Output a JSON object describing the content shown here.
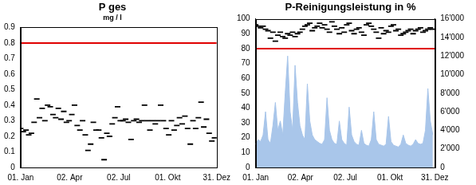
{
  "chart_data": [
    {
      "type": "scatter",
      "title": "P ges",
      "subtitle": "mg / l",
      "xlim": [
        1,
        365
      ],
      "xticks": [
        {
          "value": 1,
          "label": "01. Jan"
        },
        {
          "value": 92,
          "label": "02. Apr"
        },
        {
          "value": 183,
          "label": "02. Jul"
        },
        {
          "value": 274,
          "label": "01. Okt"
        },
        {
          "value": 365,
          "label": "31. Dez"
        }
      ],
      "ylim": [
        0,
        0.9
      ],
      "yticks": [
        0,
        0.1,
        0.2,
        0.3,
        0.4,
        0.5,
        0.6,
        0.7,
        0.8,
        0.9
      ],
      "grid": false,
      "hlines": [
        {
          "value": 0.8,
          "color": "#e00000"
        }
      ],
      "series": [
        {
          "color": "#000000",
          "marker": "dash",
          "x": [
            1,
            6,
            11,
            16,
            21,
            26,
            31,
            36,
            41,
            46,
            51,
            56,
            61,
            66,
            71,
            76,
            81,
            86,
            91,
            96,
            101,
            106,
            111,
            116,
            121,
            126,
            131,
            136,
            141,
            146,
            151,
            156,
            161,
            166,
            171,
            176,
            181,
            186,
            191,
            196,
            201,
            206,
            211,
            216,
            221,
            226,
            231,
            236,
            241,
            246,
            251,
            256,
            261,
            266,
            271,
            276,
            281,
            286,
            291,
            296,
            301,
            306,
            311,
            316,
            321,
            326,
            331,
            336,
            341,
            346,
            351,
            356,
            361
          ],
          "values": [
            0.25,
            0.23,
            0.24,
            0.21,
            0.22,
            0.29,
            0.44,
            0.32,
            0.38,
            0.3,
            0.4,
            0.39,
            0.34,
            0.32,
            0.38,
            0.31,
            0.36,
            0.29,
            0.3,
            0.34,
            0.4,
            0.27,
            0.24,
            0.3,
            0.21,
            0.11,
            0.15,
            0.29,
            0.24,
            0.24,
            0.19,
            0.05,
            0.22,
            0.2,
            0.28,
            0.32,
            0.39,
            0.3,
            0.3,
            0.31,
            0.29,
            0.18,
            0.3,
            0.31,
            0.29,
            0.3,
            0.4,
            0.3,
            0.24,
            0.3,
            0.28,
            0.3,
            0.4,
            0.3,
            0.25,
            0.21,
            0.3,
            0.24,
            0.27,
            0.32,
            0.28,
            0.33,
            0.25,
            0.15,
            0.3,
            0.25,
            0.32,
            0.42,
            0.26,
            0.31,
            0.22,
            0.17,
            0.19
          ]
        }
      ]
    },
    {
      "type": "scatter",
      "title": "P-Reinigungsleistung in %",
      "xlim": [
        1,
        365
      ],
      "xticks": [
        {
          "value": 1,
          "label": "01. Jan"
        },
        {
          "value": 92,
          "label": "02. Apr"
        },
        {
          "value": 183,
          "label": "02. Jul"
        },
        {
          "value": 274,
          "label": "01. Okt"
        },
        {
          "value": 365,
          "label": "31. Dez"
        }
      ],
      "ylim": [
        0,
        100
      ],
      "yticks": [
        0,
        10,
        20,
        30,
        40,
        50,
        60,
        70,
        80,
        90,
        100
      ],
      "y2lim": [
        0,
        16000
      ],
      "y2ticks": [
        0,
        {
          "value": 2000,
          "label": "2'000"
        },
        {
          "value": 4000,
          "label": "4'000"
        },
        {
          "value": 6000,
          "label": "6'000"
        },
        {
          "value": 8000,
          "label": "8'000"
        },
        {
          "value": 10000,
          "label": "10'000"
        },
        {
          "value": 12000,
          "label": "12'000"
        },
        {
          "value": 14000,
          "label": "14'000"
        },
        {
          "value": 16000,
          "label": "16'000"
        }
      ],
      "grid": false,
      "hlines": [
        {
          "value": 80,
          "color": "#e00000"
        }
      ],
      "series": [
        {
          "type": "area",
          "axis": "y2",
          "color": "#a9c6ea",
          "x": [
            1,
            6,
            11,
            16,
            21,
            26,
            31,
            36,
            41,
            46,
            51,
            56,
            61,
            66,
            71,
            76,
            81,
            86,
            91,
            96,
            101,
            106,
            111,
            116,
            121,
            126,
            131,
            136,
            141,
            146,
            151,
            156,
            161,
            166,
            171,
            176,
            181,
            186,
            191,
            196,
            201,
            206,
            211,
            216,
            221,
            226,
            231,
            236,
            241,
            246,
            251,
            256,
            261,
            266,
            271,
            276,
            281,
            286,
            291,
            296,
            301,
            306,
            311,
            316,
            321,
            326,
            331,
            336,
            341,
            346,
            351,
            356,
            361
          ],
          "values": [
            2500,
            3000,
            2800,
            3500,
            6000,
            3000,
            2600,
            4500,
            7000,
            4000,
            5000,
            3500,
            8000,
            12000,
            6000,
            4000,
            11000,
            7000,
            4500,
            3500,
            3000,
            9000,
            5000,
            3500,
            3000,
            2800,
            2600,
            2500,
            3000,
            7500,
            4000,
            3000,
            2600,
            2500,
            5000,
            3000,
            2600,
            2400,
            6500,
            3500,
            2800,
            2500,
            2400,
            4000,
            2600,
            2400,
            2300,
            3000,
            6000,
            3000,
            2500,
            2400,
            2300,
            2500,
            5500,
            2800,
            2400,
            2300,
            2200,
            2500,
            3500,
            2600,
            2400,
            2300,
            2500,
            3000,
            2600,
            2500,
            2600,
            4000,
            8500,
            5000,
            3500
          ]
        },
        {
          "color": "#000000",
          "marker": "dash",
          "x": [
            1,
            6,
            11,
            16,
            21,
            26,
            31,
            36,
            41,
            46,
            51,
            56,
            61,
            66,
            71,
            76,
            81,
            86,
            91,
            96,
            101,
            106,
            111,
            116,
            121,
            126,
            131,
            136,
            141,
            146,
            151,
            156,
            161,
            166,
            171,
            176,
            181,
            186,
            191,
            196,
            201,
            206,
            211,
            216,
            221,
            226,
            231,
            236,
            241,
            246,
            251,
            256,
            261,
            266,
            271,
            276,
            281,
            286,
            291,
            296,
            301,
            306,
            311,
            316,
            321,
            326,
            331,
            336,
            341,
            346,
            351,
            356,
            361
          ],
          "values": [
            96,
            95,
            94,
            95,
            93,
            92,
            87,
            91,
            85,
            89,
            91,
            88,
            87,
            90,
            89,
            91,
            88,
            90,
            91,
            93,
            95,
            96,
            97,
            92,
            94,
            95,
            97,
            94,
            96,
            93,
            91,
            98,
            95,
            93,
            90,
            94,
            91,
            96,
            97,
            92,
            90,
            93,
            94,
            91,
            89,
            96,
            97,
            95,
            93,
            91,
            87,
            94,
            90,
            92,
            91,
            95,
            96,
            92,
            93,
            89,
            90,
            91,
            92,
            93,
            90,
            92,
            93,
            94,
            91,
            92,
            93,
            94,
            93
          ]
        }
      ]
    }
  ]
}
